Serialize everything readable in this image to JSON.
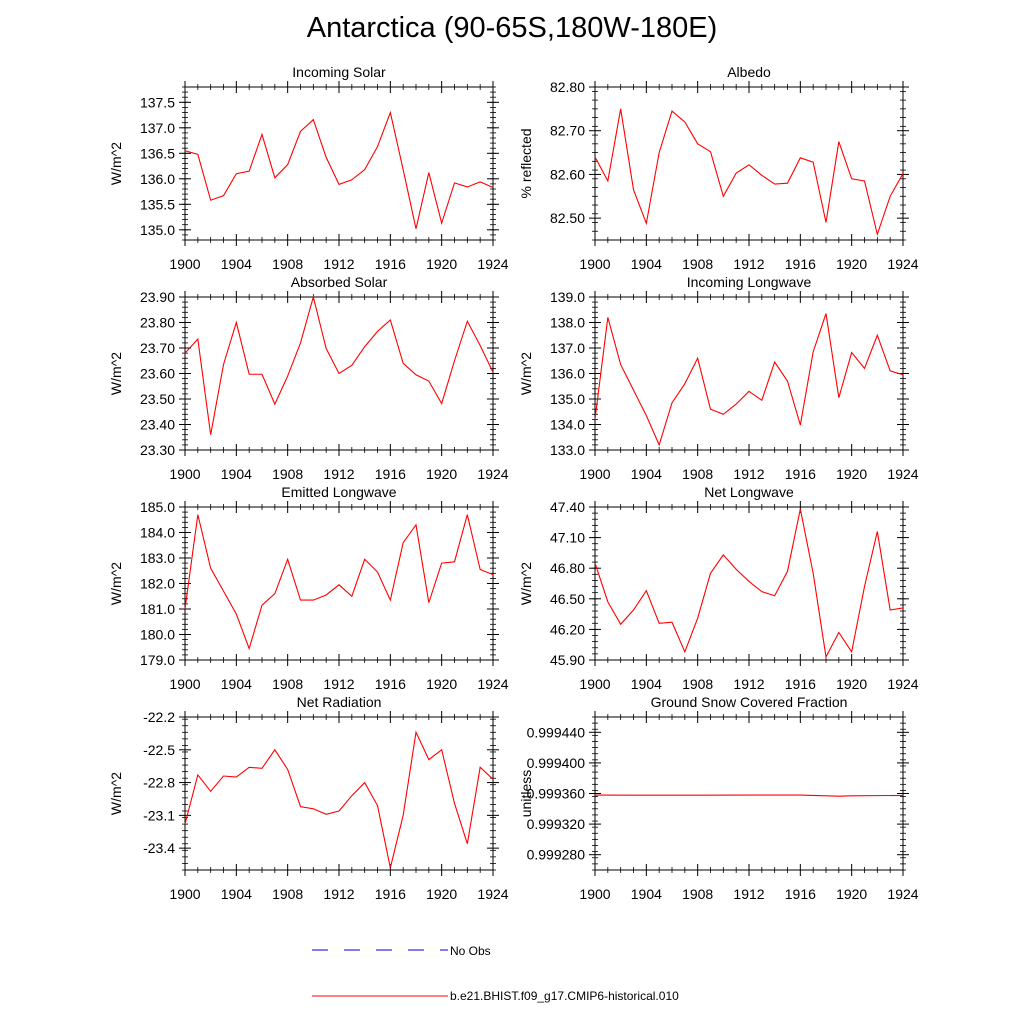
{
  "figure_title": "Antarctica (90-65S,180W-180E)",
  "chart_data": [
    {
      "type": "line",
      "title": "Incoming Solar",
      "ylabel": "W/m^2",
      "ylim": [
        134.8,
        137.8
      ],
      "yticks": [
        135.0,
        135.5,
        136.0,
        136.5,
        137.0,
        137.5
      ],
      "ytick_labels": [
        "135.0",
        "135.5",
        "136.0",
        "136.5",
        "137.0",
        "137.5"
      ],
      "xlim": [
        1900,
        1924
      ],
      "series": [
        {
          "x": [
            1900,
            1901,
            1902,
            1903,
            1904,
            1905,
            1906,
            1907,
            1908,
            1909,
            1910,
            1911,
            1912,
            1913,
            1914,
            1915,
            1916,
            1917,
            1918,
            1919,
            1920,
            1921,
            1922,
            1923,
            1924
          ],
          "y": [
            136.55,
            136.48,
            135.58,
            135.67,
            136.1,
            136.15,
            136.87,
            136.02,
            136.28,
            136.93,
            137.16,
            136.42,
            135.89,
            135.98,
            136.18,
            136.63,
            137.3,
            136.18,
            135.02,
            136.12,
            135.13,
            135.92,
            135.84,
            135.94,
            135.83
          ]
        }
      ]
    },
    {
      "type": "line",
      "title": "Albedo",
      "ylabel": "% reflected",
      "ylim": [
        82.45,
        82.8
      ],
      "yticks": [
        82.5,
        82.6,
        82.7,
        82.8
      ],
      "ytick_labels": [
        "82.50",
        "82.60",
        "82.70",
        "82.80"
      ],
      "xlim": [
        1900,
        1924
      ],
      "series": [
        {
          "x": [
            1900,
            1901,
            1902,
            1903,
            1904,
            1905,
            1906,
            1907,
            1908,
            1909,
            1910,
            1911,
            1912,
            1913,
            1914,
            1915,
            1916,
            1917,
            1918,
            1919,
            1920,
            1921,
            1922,
            1923,
            1924
          ],
          "y": [
            82.64,
            82.585,
            82.75,
            82.565,
            82.488,
            82.65,
            82.745,
            82.72,
            82.67,
            82.652,
            82.55,
            82.603,
            82.622,
            82.598,
            82.578,
            82.58,
            82.638,
            82.628,
            82.49,
            82.675,
            82.59,
            82.585,
            82.463,
            82.55,
            82.602
          ]
        }
      ]
    },
    {
      "type": "line",
      "title": "Absorbed Solar",
      "ylabel": "W/m^2",
      "ylim": [
        23.3,
        23.9
      ],
      "yticks": [
        23.3,
        23.4,
        23.5,
        23.6,
        23.7,
        23.8,
        23.9
      ],
      "ytick_labels": [
        "23.30",
        "23.40",
        "23.50",
        "23.60",
        "23.70",
        "23.80",
        "23.90"
      ],
      "xlim": [
        1900,
        1924
      ],
      "series": [
        {
          "x": [
            1900,
            1901,
            1902,
            1903,
            1904,
            1905,
            1906,
            1907,
            1908,
            1909,
            1910,
            1911,
            1912,
            1913,
            1914,
            1915,
            1916,
            1917,
            1918,
            1919,
            1920,
            1921,
            1922,
            1923,
            1924
          ],
          "y": [
            23.68,
            23.735,
            23.36,
            23.635,
            23.8,
            23.597,
            23.597,
            23.48,
            23.59,
            23.72,
            23.9,
            23.698,
            23.6,
            23.632,
            23.705,
            23.765,
            23.81,
            23.64,
            23.595,
            23.57,
            23.482,
            23.65,
            23.805,
            23.71,
            23.605
          ]
        }
      ]
    },
    {
      "type": "line",
      "title": "Incoming Longwave",
      "ylabel": "W/m^2",
      "ylim": [
        133.0,
        139.0
      ],
      "yticks": [
        133.0,
        134.0,
        135.0,
        136.0,
        137.0,
        138.0,
        139.0
      ],
      "ytick_labels": [
        "133.0",
        "134.0",
        "135.0",
        "136.0",
        "137.0",
        "138.0",
        "139.0"
      ],
      "xlim": [
        1900,
        1924
      ],
      "series": [
        {
          "x": [
            1900,
            1901,
            1902,
            1903,
            1904,
            1905,
            1906,
            1907,
            1908,
            1909,
            1910,
            1911,
            1912,
            1913,
            1914,
            1915,
            1916,
            1917,
            1918,
            1919,
            1920,
            1921,
            1922,
            1923,
            1924
          ],
          "y": [
            134.2,
            138.2,
            136.35,
            135.35,
            134.35,
            133.2,
            134.85,
            135.6,
            136.6,
            134.6,
            134.4,
            134.8,
            135.3,
            134.95,
            136.45,
            135.7,
            133.98,
            136.85,
            138.35,
            135.05,
            136.82,
            136.2,
            137.5,
            136.1,
            135.95
          ]
        }
      ]
    },
    {
      "type": "line",
      "title": "Emitted Longwave",
      "ylabel": "W/m^2",
      "ylim": [
        179.0,
        185.0
      ],
      "yticks": [
        179.0,
        180.0,
        181.0,
        182.0,
        183.0,
        184.0,
        185.0
      ],
      "ytick_labels": [
        "179.0",
        "180.0",
        "181.0",
        "182.0",
        "183.0",
        "184.0",
        "185.0"
      ],
      "xlim": [
        1900,
        1924
      ],
      "series": [
        {
          "x": [
            1900,
            1901,
            1902,
            1903,
            1904,
            1905,
            1906,
            1907,
            1908,
            1909,
            1910,
            1911,
            1912,
            1913,
            1914,
            1915,
            1916,
            1917,
            1918,
            1919,
            1920,
            1921,
            1922,
            1923,
            1924
          ],
          "y": [
            181.0,
            184.7,
            182.6,
            181.7,
            180.8,
            179.45,
            181.15,
            181.6,
            182.95,
            181.35,
            181.35,
            181.55,
            181.95,
            181.5,
            182.95,
            182.45,
            181.35,
            183.6,
            184.3,
            181.25,
            182.8,
            182.85,
            184.7,
            182.55,
            182.35
          ]
        }
      ]
    },
    {
      "type": "line",
      "title": "Net Longwave",
      "ylabel": "W/m^2",
      "ylim": [
        45.9,
        47.4
      ],
      "yticks": [
        45.9,
        46.2,
        46.5,
        46.8,
        47.1,
        47.4
      ],
      "ytick_labels": [
        "45.90",
        "46.20",
        "46.50",
        "46.80",
        "47.10",
        "47.40"
      ],
      "xlim": [
        1900,
        1924
      ],
      "series": [
        {
          "x": [
            1900,
            1901,
            1902,
            1903,
            1904,
            1905,
            1906,
            1907,
            1908,
            1909,
            1910,
            1911,
            1912,
            1913,
            1914,
            1915,
            1916,
            1917,
            1918,
            1919,
            1920,
            1921,
            1922,
            1923,
            1924
          ],
          "y": [
            46.85,
            46.47,
            46.25,
            46.39,
            46.58,
            46.26,
            46.27,
            45.98,
            46.31,
            46.75,
            46.93,
            46.79,
            46.67,
            46.57,
            46.53,
            46.77,
            47.38,
            46.75,
            45.93,
            46.17,
            45.98,
            46.62,
            47.16,
            46.39,
            46.41
          ]
        }
      ]
    },
    {
      "type": "line",
      "title": "Net Radiation",
      "ylabel": "W/m^2",
      "ylim": [
        -23.6,
        -22.2
      ],
      "yticks": [
        -23.4,
        -23.1,
        -22.8,
        -22.5,
        -22.2
      ],
      "ytick_labels": [
        "-23.4",
        "-23.1",
        "-22.8",
        "-22.5",
        "-22.2"
      ],
      "xlim": [
        1900,
        1924
      ],
      "series": [
        {
          "x": [
            1900,
            1901,
            1902,
            1903,
            1904,
            1905,
            1906,
            1907,
            1908,
            1909,
            1910,
            1911,
            1912,
            1913,
            1914,
            1915,
            1916,
            1917,
            1918,
            1919,
            1920,
            1921,
            1922,
            1923,
            1924
          ],
          "y": [
            -23.18,
            -22.73,
            -22.88,
            -22.74,
            -22.75,
            -22.66,
            -22.67,
            -22.5,
            -22.68,
            -23.02,
            -23.04,
            -23.09,
            -23.06,
            -22.92,
            -22.8,
            -23.01,
            -23.58,
            -23.1,
            -22.34,
            -22.59,
            -22.5,
            -22.99,
            -23.36,
            -22.66,
            -22.77
          ]
        }
      ]
    },
    {
      "type": "line",
      "title": "Ground Snow Covered Fraction",
      "ylabel": "unitless",
      "ylim": [
        0.99926,
        0.99946
      ],
      "yticks": [
        0.99928,
        0.99932,
        0.99936,
        0.9994,
        0.99944
      ],
      "ytick_labels": [
        "0.999280",
        "0.999320",
        "0.999360",
        "0.999400",
        "0.999440"
      ],
      "xlim": [
        1900,
        1924
      ],
      "series": [
        {
          "x": [
            1900,
            1904,
            1908,
            1912,
            1916,
            1919,
            1920,
            1924
          ],
          "y": [
            0.999358,
            0.9993578,
            0.9993578,
            0.999358,
            0.999358,
            0.9993565,
            0.999357,
            0.9993575
          ]
        }
      ]
    }
  ],
  "xtick_labels": [
    "1900",
    "1904",
    "1908",
    "1912",
    "1916",
    "1920",
    "1924"
  ],
  "legend": [
    {
      "label": "No Obs",
      "color": "#0000cc",
      "dash": "dashed"
    },
    {
      "label": "b.e21.BHIST.f09_g17.CMIP6-historical.010",
      "color": "#ff0000",
      "dash": "solid"
    }
  ],
  "colors": {
    "series": "#ff0000",
    "obs": "#0000cc",
    "axes": "#000000"
  }
}
